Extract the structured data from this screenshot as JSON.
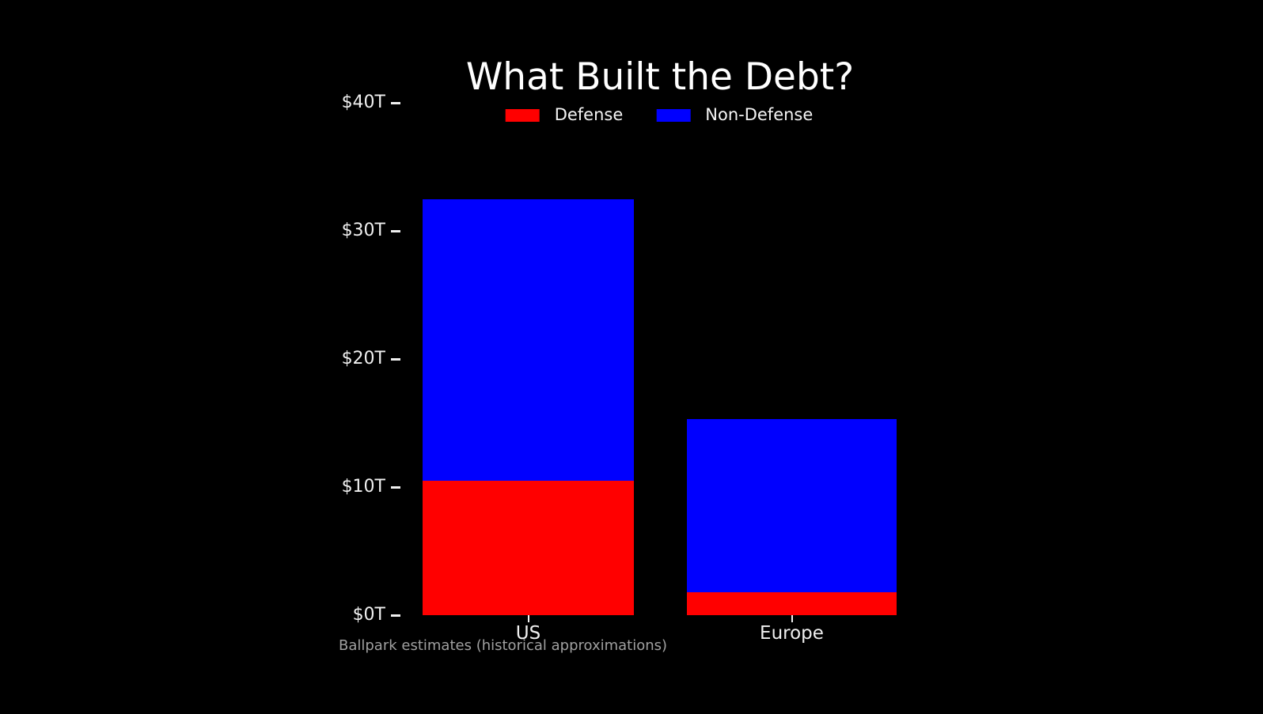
{
  "chart_data": {
    "type": "bar",
    "stacked": true,
    "title": "What Built the Debt?",
    "categories": [
      "US",
      "Europe"
    ],
    "series": [
      {
        "name": "Defense",
        "color": "#ff0000",
        "values": [
          10.5,
          1.8
        ]
      },
      {
        "name": "Non-Defense",
        "color": "#0000ff",
        "values": [
          22.0,
          13.5
        ]
      }
    ],
    "xlabel": "",
    "ylabel": "",
    "ylim": [
      0,
      40
    ],
    "yticks": {
      "values": [
        0,
        10,
        20,
        30,
        40
      ],
      "labels": [
        "$0T",
        "$10T",
        "$20T",
        "$30T",
        "$40T"
      ]
    },
    "grid": false,
    "legend_position": "top-center",
    "annotation": "Ballpark estimates (historical approximations)"
  },
  "colors": {
    "background": "#000000",
    "title_text": "#ffffff",
    "tick_text": "#f0f0f0",
    "note_text": "#a0a0a0"
  }
}
